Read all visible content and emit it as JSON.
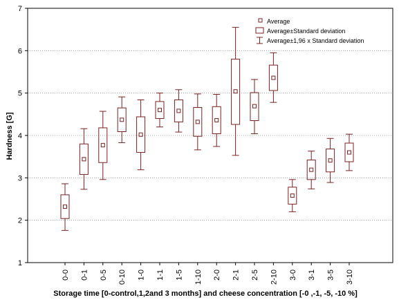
{
  "chart_data": {
    "type": "box",
    "title": "",
    "xlabel": "Storage time [0-control,1,2and 3 months] and cheese concentration [-0 ,-1, -5, -10 %]",
    "ylabel": "Hardness [G]",
    "ylim": [
      1,
      7
    ],
    "yticks": [
      "1",
      "2",
      "3",
      "4",
      "5",
      "6",
      "7"
    ],
    "grid": "horizontal dotted",
    "legend_position": "top-right",
    "color": "#7b1f1f",
    "legend": {
      "average": "Average",
      "sd": "Average±Standard deviation",
      "ci": "Average±1,96 x Standard deviation"
    },
    "categories": [
      "0-0",
      "0-1",
      "0-5",
      "0-10",
      "1-0",
      "1-1",
      "1-5",
      "1-10",
      "2-0",
      "2-1",
      "2-5",
      "2-10",
      "3-0",
      "3-1",
      "3-5",
      "3-10"
    ],
    "mean": [
      2.32,
      3.44,
      3.77,
      4.37,
      4.02,
      4.6,
      4.58,
      4.32,
      4.36,
      5.04,
      4.69,
      5.36,
      2.58,
      3.19,
      3.41,
      3.6
    ],
    "sd_low": [
      2.04,
      3.08,
      3.36,
      4.09,
      3.6,
      4.4,
      4.32,
      3.98,
      4.04,
      4.26,
      4.35,
      5.06,
      2.38,
      2.96,
      3.14,
      3.38
    ],
    "sd_high": [
      2.6,
      3.8,
      4.18,
      4.65,
      4.44,
      4.8,
      4.84,
      4.66,
      4.68,
      5.8,
      5.01,
      5.66,
      2.78,
      3.42,
      3.68,
      3.82
    ],
    "ci_low": [
      1.76,
      2.73,
      2.96,
      3.83,
      3.19,
      4.2,
      4.08,
      3.66,
      3.74,
      3.53,
      4.04,
      4.78,
      2.2,
      2.74,
      2.89,
      3.17
    ],
    "ci_high": [
      2.86,
      4.16,
      4.57,
      4.91,
      4.84,
      5.0,
      5.08,
      4.98,
      4.97,
      6.55,
      5.32,
      5.95,
      2.96,
      3.63,
      3.93,
      4.03
    ]
  }
}
